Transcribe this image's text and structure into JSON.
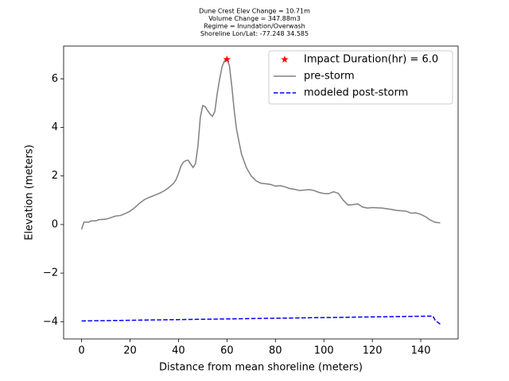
{
  "chart_data": {
    "type": "line",
    "title_lines": [
      "Dune Crest Elev Change = 10.71m",
      "Volume Change = 347.88m3",
      "Regime = Inundation/Overwash",
      "Shoreline Lon/Lat: -77.248 34.585"
    ],
    "xlabel": "Distance from mean shoreline (meters)",
    "ylabel": "Elevation (meters)",
    "xlim": [
      -7.4,
      155.4
    ],
    "ylim": [
      -4.71,
      7.35
    ],
    "xticks": [
      0,
      20,
      40,
      60,
      80,
      100,
      120,
      140
    ],
    "yticks": [
      {
        "value": -4,
        "label": "−4"
      },
      {
        "value": -2,
        "label": "−2"
      },
      0,
      2,
      4,
      6
    ],
    "legend": "upper right",
    "series": [
      {
        "name": "Impact Duration(hr) = 6.0",
        "color": "#ff0000",
        "style": "star",
        "x": [
          60
        ],
        "values": [
          6.8
        ]
      },
      {
        "name": "pre-storm",
        "color": "#808080",
        "style": "solid",
        "x": [
          0,
          1,
          3,
          4,
          6,
          7,
          10,
          12,
          14,
          16,
          18,
          20,
          22,
          24,
          26,
          28,
          30,
          32,
          34,
          36,
          38,
          39,
          40,
          41,
          42,
          43,
          44,
          45,
          46,
          47,
          48,
          49,
          50,
          51,
          52,
          53,
          54,
          55,
          56,
          57,
          58,
          59,
          60,
          61,
          62,
          63,
          64,
          65,
          66,
          68,
          70,
          72,
          74,
          76,
          78,
          80,
          82,
          84,
          86,
          88,
          90,
          92,
          94,
          96,
          98,
          100,
          102,
          104,
          106,
          108,
          110,
          112,
          114,
          116,
          118,
          120,
          124,
          128,
          130,
          134,
          136,
          138,
          140,
          142,
          144,
          146,
          148
        ],
        "values": [
          -0.2,
          0.1,
          0.1,
          0.15,
          0.15,
          0.2,
          0.22,
          0.28,
          0.35,
          0.37,
          0.45,
          0.55,
          0.7,
          0.88,
          1.03,
          1.12,
          1.2,
          1.28,
          1.38,
          1.52,
          1.7,
          1.85,
          2.1,
          2.4,
          2.57,
          2.63,
          2.65,
          2.5,
          2.35,
          2.5,
          3.2,
          4.4,
          4.9,
          4.85,
          4.7,
          4.55,
          4.45,
          4.65,
          5.4,
          6.0,
          6.5,
          6.75,
          6.8,
          6.55,
          5.7,
          4.7,
          3.9,
          3.4,
          2.9,
          2.35,
          2.0,
          1.8,
          1.7,
          1.68,
          1.65,
          1.58,
          1.6,
          1.55,
          1.48,
          1.45,
          1.4,
          1.42,
          1.44,
          1.4,
          1.32,
          1.28,
          1.27,
          1.35,
          1.28,
          1.0,
          0.8,
          0.82,
          0.85,
          0.72,
          0.68,
          0.7,
          0.68,
          0.62,
          0.58,
          0.55,
          0.47,
          0.48,
          0.42,
          0.32,
          0.18,
          0.09,
          0.07
        ]
      },
      {
        "name": "modeled post-storm",
        "color": "#0000ff",
        "style": "dashed",
        "x": [
          0,
          50,
          100,
          145,
          146,
          148
        ],
        "values": [
          -3.97,
          -3.9,
          -3.83,
          -3.77,
          -3.95,
          -4.1
        ]
      }
    ]
  }
}
